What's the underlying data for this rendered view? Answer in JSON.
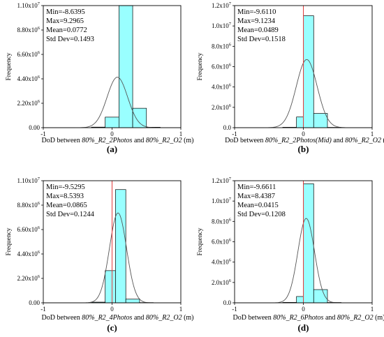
{
  "colors": {
    "bar_fill": "#99FFFF",
    "bar_stroke": "#000000",
    "normal_curve": "#555555",
    "zero_line": "#e23b3b",
    "frame": "#000000"
  },
  "chart_data": [
    {
      "type": "bar",
      "caption": "(a)",
      "ylabel": "Frequency",
      "xlabel_parts": [
        "DoD between ",
        "80%_R2_2Photos",
        " and ",
        "80%_R2_O2",
        " (m)"
      ],
      "xlim": [
        -1,
        1
      ],
      "xtick_labels": [
        "-1",
        "0",
        "1"
      ],
      "ylim": [
        0,
        11000000.0
      ],
      "yticks": [
        0,
        2200000.0,
        4400000.0,
        6600000.0,
        8800000.0,
        11000000.0
      ],
      "ytick_labels": [
        "0.00",
        "2.20x10^6",
        "4.40x10^6",
        "6.60x10^6",
        "8.80x10^6",
        "1.10x10^7"
      ],
      "bins": [
        {
          "x0": -0.3,
          "x1": -0.1,
          "count": 50000
        },
        {
          "x0": -0.1,
          "x1": 0.1,
          "count": 950000.0
        },
        {
          "x0": 0.1,
          "x1": 0.3,
          "count": 11000000.0
        },
        {
          "x0": 0.3,
          "x1": 0.5,
          "count": 1750000.0
        },
        {
          "x0": 0.5,
          "x1": 0.7,
          "count": 40000
        }
      ],
      "curve": {
        "mean": 0.0772,
        "sd": 0.1493,
        "peak": 4550000.0
      },
      "stats": [
        "Min=-8.6395",
        "Max=9.2965",
        "Mean=0.0772",
        "Std Dev=0.1493"
      ],
      "zero_line": false
    },
    {
      "type": "bar",
      "caption": "(b)",
      "ylabel": "Frequency",
      "xlabel_parts": [
        "DoD between ",
        "80%_R2_2Photos(Mid)",
        " and ",
        "80%_R2_O2",
        " (m)"
      ],
      "xlim": [
        -1,
        1
      ],
      "xtick_labels": [
        "-1",
        "0",
        "1"
      ],
      "ylim": [
        0,
        12000000.0
      ],
      "yticks": [
        0,
        2000000.0,
        4000000.0,
        6000000.0,
        8000000.0,
        10000000.0,
        12000000.0
      ],
      "ytick_labels": [
        "0.0",
        "2.0x10^6",
        "4.0x10^6",
        "6.0x10^6",
        "8.0x10^6",
        "1.0x10^7",
        "1.2x10^7"
      ],
      "bins": [
        {
          "x0": -0.3,
          "x1": -0.1,
          "count": 40000
        },
        {
          "x0": -0.1,
          "x1": 0.0,
          "count": 1050000.0
        },
        {
          "x0": 0.0,
          "x1": 0.15,
          "count": 11000000.0
        },
        {
          "x0": 0.15,
          "x1": 0.35,
          "count": 1400000.0
        },
        {
          "x0": 0.35,
          "x1": 0.55,
          "count": 30000
        }
      ],
      "curve": {
        "mean": 0.0489,
        "sd": 0.1518,
        "peak": 6700000.0
      },
      "stats": [
        "Min=-9.6110",
        "Max=9.1234",
        "Mean=0.0489",
        "Std Dev=0.1518"
      ],
      "zero_line": true
    },
    {
      "type": "bar",
      "caption": "(c)",
      "ylabel": "Frequency",
      "xlabel_parts": [
        "DoD between ",
        "80%_R2_4Photos",
        " and ",
        "80%_R2_O2",
        " (m)"
      ],
      "xlim": [
        -1,
        1
      ],
      "xtick_labels": [
        "-1",
        "0",
        "1"
      ],
      "ylim": [
        0,
        11000000.0
      ],
      "yticks": [
        0,
        2200000.0,
        4400000.0,
        6600000.0,
        8800000.0,
        11000000.0
      ],
      "ytick_labels": [
        "0.00",
        "2.20x10^6",
        "4.40x10^6",
        "6.60x10^6",
        "8.80x10^6",
        "1.10x10^7"
      ],
      "bins": [
        {
          "x0": -0.3,
          "x1": -0.1,
          "count": 60000
        },
        {
          "x0": -0.1,
          "x1": 0.05,
          "count": 2900000.0
        },
        {
          "x0": 0.05,
          "x1": 0.2,
          "count": 10200000.0
        },
        {
          "x0": 0.2,
          "x1": 0.4,
          "count": 330000.0
        },
        {
          "x0": 0.4,
          "x1": 0.6,
          "count": 20000
        }
      ],
      "curve": {
        "mean": 0.0865,
        "sd": 0.1244,
        "peak": 8100000.0
      },
      "stats": [
        "Min=-9.5295",
        "Max=8.5393",
        "Mean=0.0865",
        "Std Dev=0.1244"
      ],
      "zero_line": true
    },
    {
      "type": "bar",
      "caption": "(d)",
      "ylabel": "Frequency",
      "xlabel_parts": [
        "DoD between ",
        "80%_R2_6Photos",
        " and ",
        "80%_R2_O2",
        " (m)"
      ],
      "xlim": [
        -1,
        1
      ],
      "xtick_labels": [
        "-1",
        "0",
        "1"
      ],
      "ylim": [
        0,
        12000000.0
      ],
      "yticks": [
        0,
        2000000.0,
        4000000.0,
        6000000.0,
        8000000.0,
        10000000.0,
        12000000.0
      ],
      "ytick_labels": [
        "0.0",
        "2.0x10^6",
        "4.0x10^6",
        "6.0x10^6",
        "8.0x10^6",
        "1.0x10^7",
        "1.2x10^7"
      ],
      "bins": [
        {
          "x0": -0.3,
          "x1": -0.1,
          "count": 40000
        },
        {
          "x0": -0.1,
          "x1": 0.0,
          "count": 620000.0
        },
        {
          "x0": 0.0,
          "x1": 0.15,
          "count": 11700000.0
        },
        {
          "x0": 0.15,
          "x1": 0.35,
          "count": 1300000.0
        },
        {
          "x0": 0.35,
          "x1": 0.55,
          "count": 30000
        }
      ],
      "curve": {
        "mean": 0.0415,
        "sd": 0.1208,
        "peak": 8300000.0
      },
      "stats": [
        "Min=-9.6611",
        "Max=8.4387",
        "Mean=0.0415",
        "Std Dev=0.1208"
      ],
      "zero_line": true
    }
  ]
}
